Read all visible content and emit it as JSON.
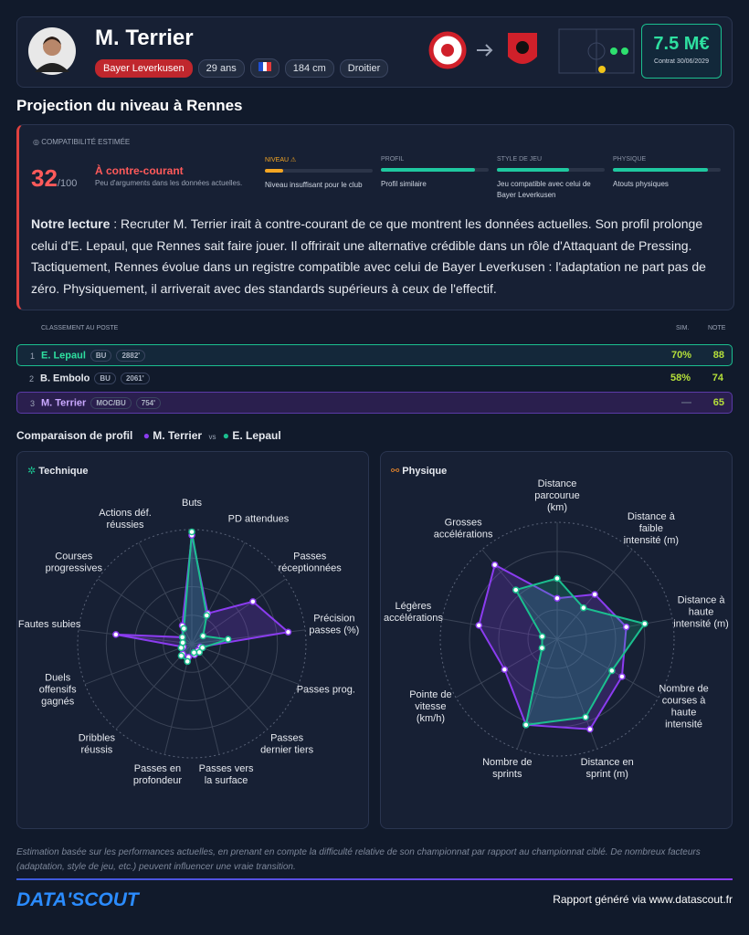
{
  "header": {
    "name": "M. Terrier",
    "club": "Bayer Leverkusen",
    "age": "29 ans",
    "height": "184 cm",
    "foot": "Droitier",
    "value": "7.5 M€",
    "contract": "Contrat 30/06/2029"
  },
  "projection": {
    "title": "Projection du niveau à Rennes",
    "label": "COMPATIBILITÉ ESTIMÉE",
    "score": 32,
    "score_max": "/100",
    "verdict": "À contre-courant",
    "verdict_detail": "Peu d'arguments dans les données actuelles.",
    "criteria": [
      {
        "name": "NIVEAU ⚠",
        "score": 17,
        "color": "#f5a623",
        "text": "Niveau insuffisant pour le club"
      },
      {
        "name": "PROFIL",
        "score": 87,
        "color": "#1fc8a0",
        "text": "Profil similaire"
      },
      {
        "name": "STYLE DE JEU",
        "score": 67,
        "color": "#1fc8a0",
        "text": "Jeu compatible avec celui de Bayer Leverkusen"
      },
      {
        "name": "PHYSIQUE",
        "score": 88,
        "color": "#1fc8a0",
        "text": "Atouts physiques"
      }
    ],
    "reading": {
      "label": "Notre lecture",
      "text": " : Recruter M. Terrier irait à contre-courant de ce que montrent les données actuelles. Son profil prolonge celui d'E. Lepaul, que Rennes sait faire jouer. Il offrirait une alternative crédible dans un rôle d'Attaquant de Pressing. Tactiquement, Rennes évolue dans un registre compatible avec celui de Bayer Leverkusen : l'adaptation ne part pas de zéro. Physiquement, il arriverait avec des standards supérieurs à ceux de l'effectif."
    }
  },
  "ranking": {
    "header": "CLASSEMENT AU POSTE",
    "sim_header": "SIM.",
    "note_header": "NOTE",
    "rows": [
      {
        "rank": 1,
        "name": "E. Lepaul",
        "position": "BU",
        "minutes": "2882'",
        "sim": "70%",
        "note": 88
      },
      {
        "rank": 2,
        "name": "B. Embolo",
        "position": "BU",
        "minutes": "2061'",
        "sim": "58%",
        "note": 74
      },
      {
        "rank": 3,
        "name": "M. Terrier",
        "position": "MOC/BU",
        "minutes": "754'",
        "sim": "—",
        "note": 65
      }
    ]
  },
  "comparison": {
    "title": "Comparaison de profil",
    "vs": "vs"
  },
  "chart_data": [
    {
      "type": "radar",
      "title": "Technique",
      "rlim": [
        0,
        100
      ],
      "categories": [
        "Buts",
        "PD attendues",
        "Passes réceptionnées",
        "Précision passes (%)",
        "Passes prog.",
        "Passes dernier tiers",
        "Passes vers la surface",
        "Passes en profondeur",
        "Dribbles réussis",
        "Duels offensifs gagnés",
        "Fautes subies",
        "Courses progressives",
        "Actions déf. réussies"
      ],
      "series": [
        {
          "name": "M. Terrier",
          "color": "#8b3cf0",
          "values": [
            95,
            30,
            65,
            85,
            8,
            8,
            10,
            12,
            12,
            8,
            67,
            10,
            18
          ]
        },
        {
          "name": "E. Lepaul",
          "color": "#1bbf8f",
          "values": [
            98,
            28,
            12,
            32,
            10,
            10,
            8,
            16,
            14,
            10,
            8,
            10,
            15
          ]
        }
      ]
    },
    {
      "type": "radar",
      "title": "Physique",
      "rlim": [
        0,
        100
      ],
      "categories": [
        "Distance parcourue (km)",
        "Distance à faible intensité (m)",
        "Distance à haute intensité (m)",
        "Nombre de courses à haute intensité",
        "Distance en sprint (m)",
        "Nombre de sprints",
        "Pointe de vitesse (km/h)",
        "Légères accélérations",
        "Grosses accélérations"
      ],
      "series": [
        {
          "name": "M. Terrier",
          "color": "#8b3cf0",
          "values": [
            35,
            50,
            60,
            64,
            82,
            78,
            52,
            68,
            83
          ]
        },
        {
          "name": "E. Lepaul",
          "color": "#1bbf8f",
          "values": [
            52,
            35,
            76,
            54,
            71,
            78,
            15,
            13,
            55
          ]
        }
      ]
    }
  ],
  "footer": {
    "disclaimer": "Estimation basée sur les performances actuelles, en prenant en compte la difficulté relative de son championnat par rapport au championnat ciblé. De nombreux facteurs (adaptation, style de jeu, etc.) peuvent influencer une vraie transition.",
    "logo": "DATA'SCOUT",
    "credit": "Rapport généré via www.datascout.fr"
  }
}
